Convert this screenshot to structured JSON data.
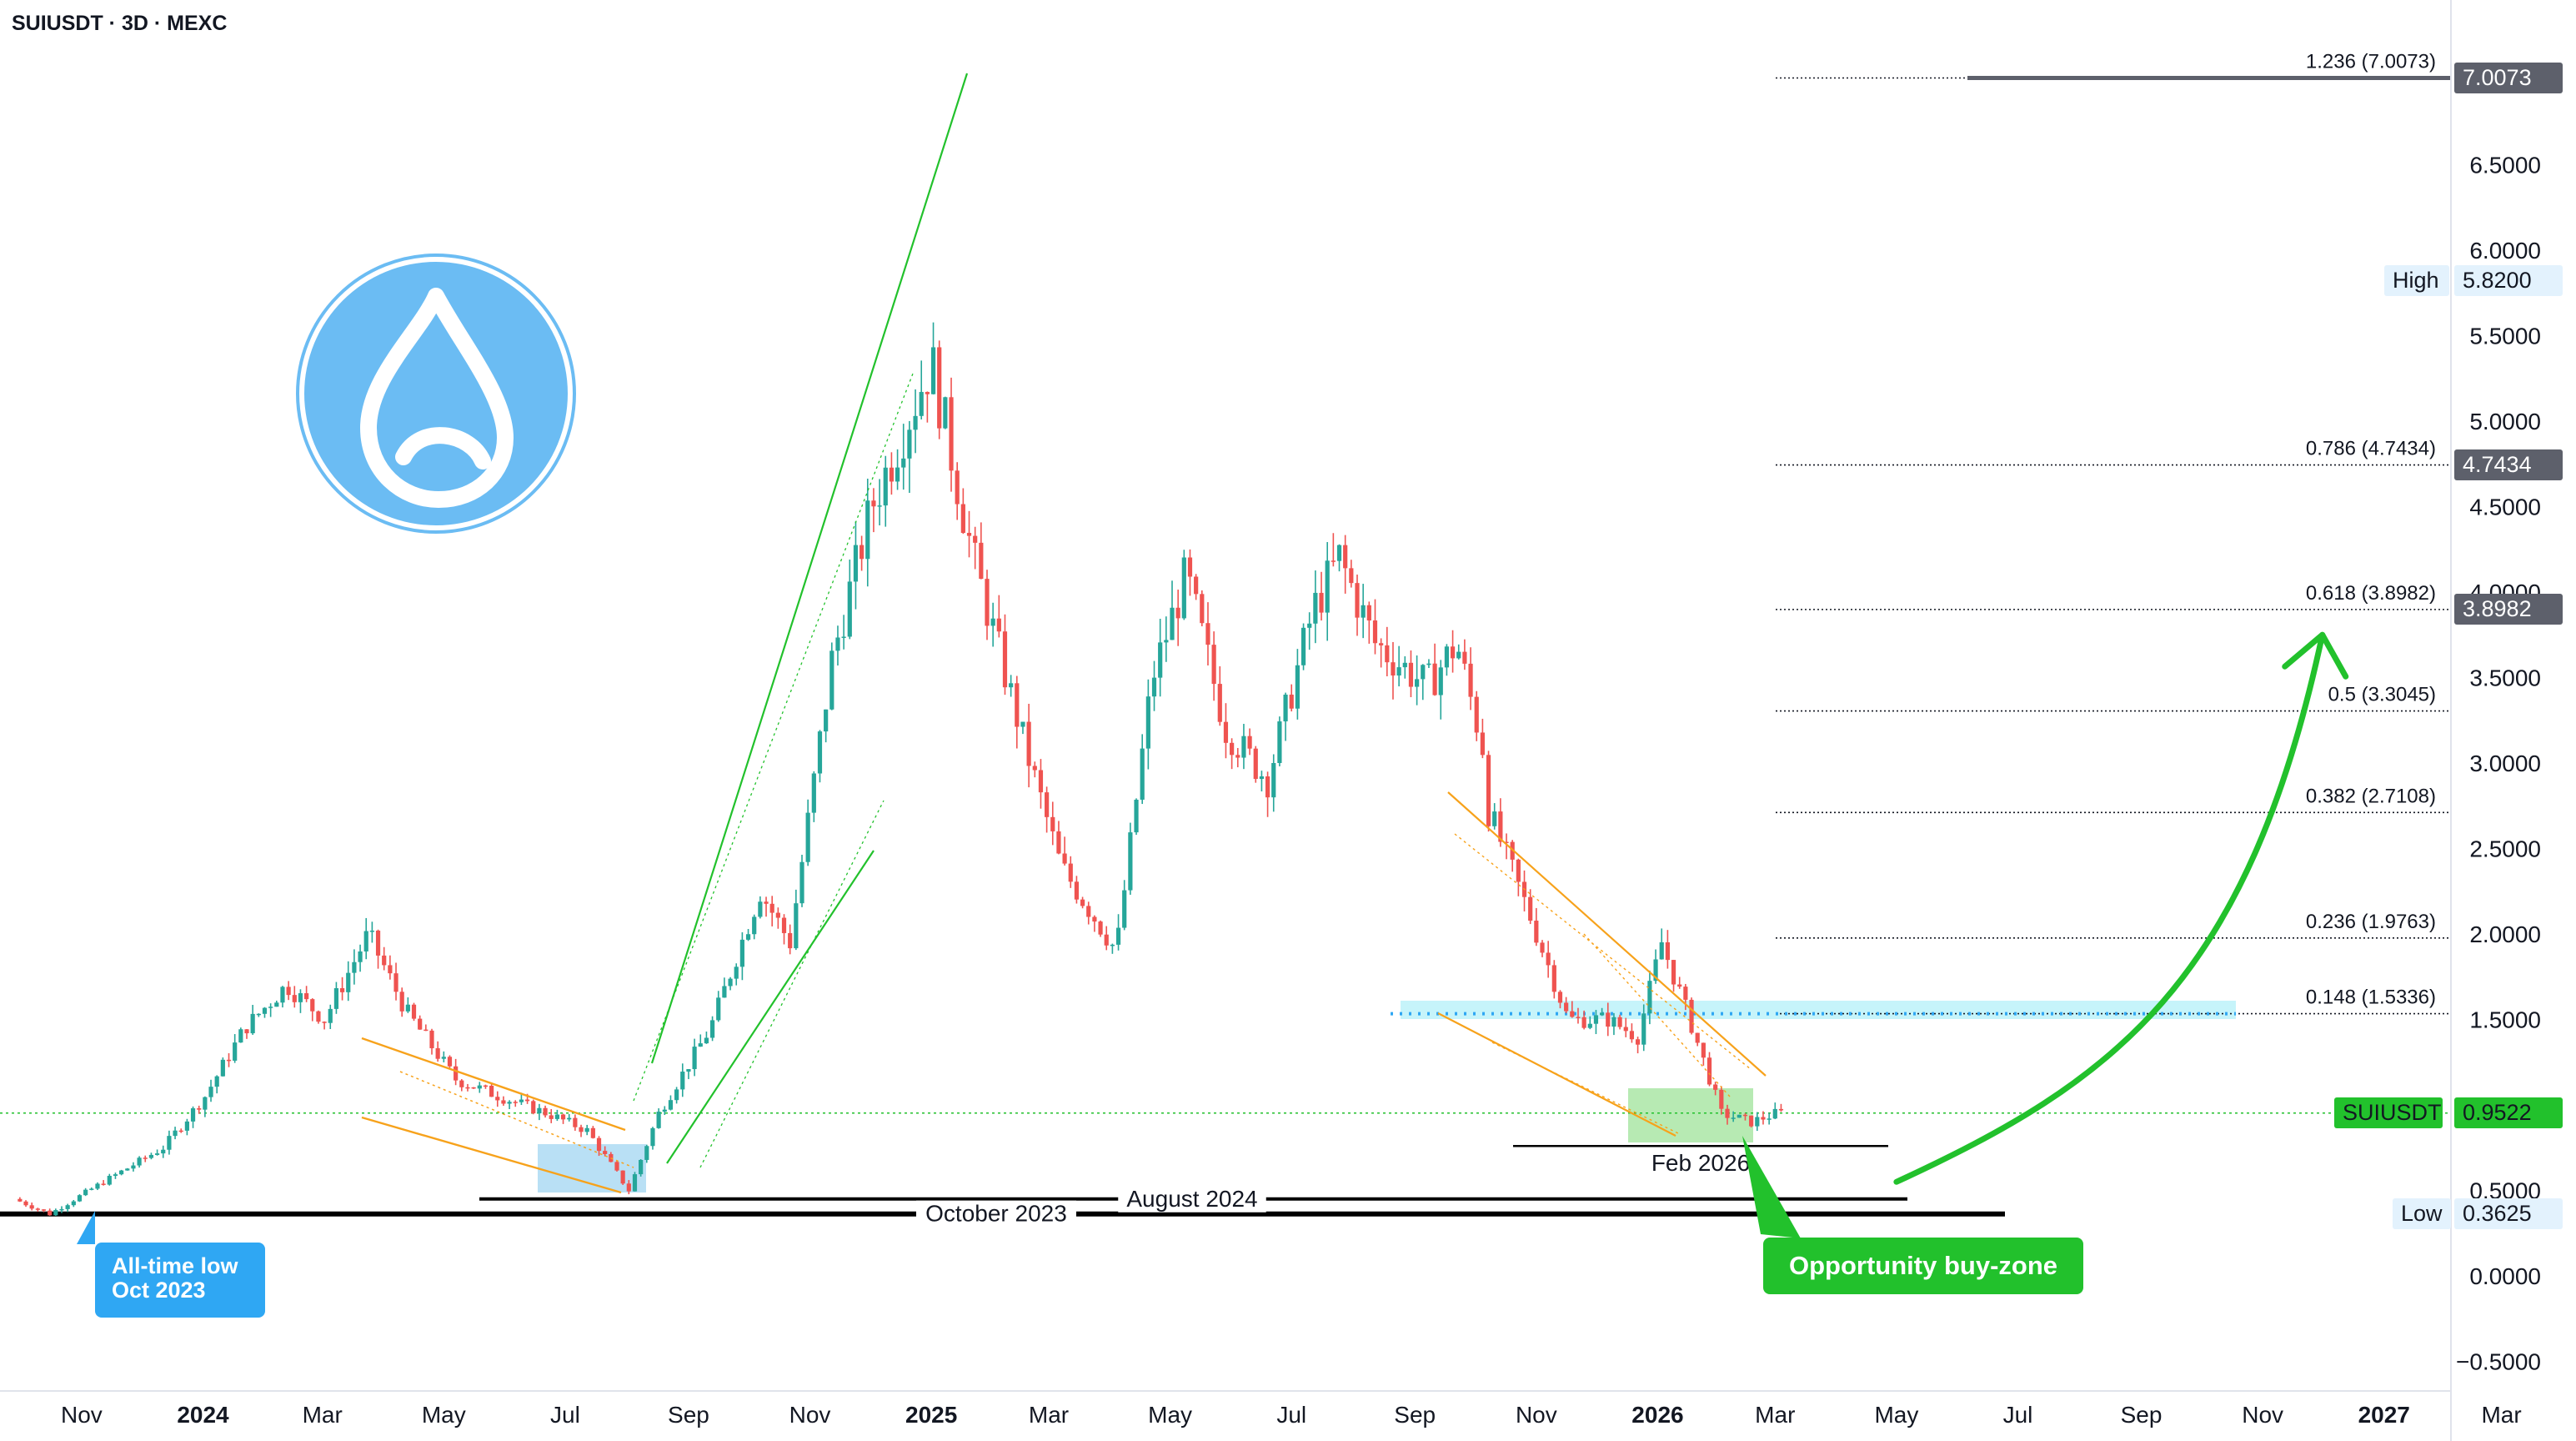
{
  "header": {
    "symbol": "SUIUSDT",
    "interval": "3D",
    "exchange": "MEXC",
    "sep": " · "
  },
  "colors": {
    "up": "#26a69a",
    "down": "#ef5350",
    "green": "#22c12c",
    "orange": "#f7a21b",
    "blue": "#2fa7f3",
    "cyan": "#8ee9f6",
    "gray_tag": "#5d606b",
    "logo": "#6bbcf3"
  },
  "icons": {
    "logo": "sui-drop-logo"
  },
  "price_axis": {
    "ticks": [
      "6.5000",
      "6.0000",
      "5.5000",
      "5.0000",
      "4.5000",
      "4.0000",
      "3.5000",
      "3.0000",
      "2.5000",
      "2.0000",
      "1.5000",
      "0.5000",
      "0.0000",
      "−0.5000"
    ],
    "high": {
      "label": "High",
      "value": "5.8200"
    },
    "low": {
      "label": "Low",
      "value": "0.3625"
    },
    "last": {
      "label": "SUIUSDT",
      "value": "0.9522"
    },
    "tags": [
      "7.0073",
      "4.7434",
      "3.8982"
    ]
  },
  "fib_levels": [
    {
      "label": "1.236 (7.0073)",
      "value": 7.0073
    },
    {
      "label": "0.786 (4.7434)",
      "value": 4.7434
    },
    {
      "label": "0.618 (3.8982)",
      "value": 3.8982
    },
    {
      "label": "0.5 (3.3045)",
      "value": 3.3045
    },
    {
      "label": "0.382 (2.7108)",
      "value": 2.7108
    },
    {
      "label": "0.236 (1.9763)",
      "value": 1.9763
    },
    {
      "label": "0.148 (1.5336)",
      "value": 1.5336
    }
  ],
  "time_axis": [
    "Nov",
    "2024",
    "Mar",
    "May",
    "Jul",
    "Sep",
    "Nov",
    "2025",
    "Mar",
    "May",
    "Jul",
    "Sep",
    "Nov",
    "2026",
    "Mar",
    "May",
    "Jul",
    "Sep",
    "Nov",
    "2027",
    "Mar"
  ],
  "annotations": {
    "aug_2024": "August 2024",
    "oct_2023": "October 2023",
    "feb_2026": "Feb 2026",
    "atl_line1": "All-time low",
    "atl_line2": "Oct 2023",
    "buy_zone": "Opportunity buy-zone"
  },
  "chart_data": {
    "type": "candlestick",
    "title": "SUIUSDT · 3D · MEXC",
    "ylim": [
      -0.5,
      7.3
    ],
    "x_start": "2023-10",
    "x_end": "2027-03",
    "price_path": [
      [
        "2023-10-01",
        0.45
      ],
      [
        "2023-10-19",
        0.3625
      ],
      [
        "2023-11-15",
        0.55
      ],
      [
        "2023-12-15",
        0.75
      ],
      [
        "2024-01-05",
        1.05
      ],
      [
        "2024-01-25",
        1.45
      ],
      [
        "2024-02-15",
        1.7
      ],
      [
        "2024-03-05",
        1.5
      ],
      [
        "2024-03-27",
        2.0
      ],
      [
        "2024-04-15",
        1.55
      ],
      [
        "2024-05-10",
        1.15
      ],
      [
        "2024-06-01",
        1.05
      ],
      [
        "2024-06-25",
        0.95
      ],
      [
        "2024-07-15",
        0.85
      ],
      [
        "2024-08-05",
        0.5
      ],
      [
        "2024-08-20",
        0.95
      ],
      [
        "2024-09-15",
        1.45
      ],
      [
        "2024-10-10",
        2.25
      ],
      [
        "2024-10-25",
        1.95
      ],
      [
        "2024-11-15",
        3.6
      ],
      [
        "2024-12-05",
        4.5
      ],
      [
        "2025-01-04",
        5.35
      ],
      [
        "2025-01-25",
        4.2
      ],
      [
        "2025-02-20",
        3.1
      ],
      [
        "2025-03-10",
        2.4
      ],
      [
        "2025-04-07",
        1.9
      ],
      [
        "2025-04-25",
        3.5
      ],
      [
        "2025-05-12",
        4.1
      ],
      [
        "2025-06-01",
        3.2
      ],
      [
        "2025-06-22",
        2.9
      ],
      [
        "2025-07-15",
        3.9
      ],
      [
        "2025-07-28",
        4.2
      ],
      [
        "2025-08-15",
        3.7
      ],
      [
        "2025-09-10",
        3.45
      ],
      [
        "2025-09-25",
        3.7
      ],
      [
        "2025-10-08",
        3.1
      ],
      [
        "2025-10-10",
        2.75
      ],
      [
        "2025-11-01",
        2.1
      ],
      [
        "2025-11-20",
        1.5
      ],
      [
        "2025-12-10",
        1.5
      ],
      [
        "2025-12-25",
        1.4
      ],
      [
        "2026-01-06",
        1.95
      ],
      [
        "2026-01-20",
        1.5
      ],
      [
        "2026-02-05",
        0.95
      ],
      [
        "2026-02-20",
        0.9
      ],
      [
        "2026-03-05",
        0.9522
      ]
    ],
    "high": 5.82,
    "low": 0.3625,
    "last": 0.9522,
    "fib_levels": [
      {
        "ratio": 1.236,
        "value": 7.0073
      },
      {
        "ratio": 0.786,
        "value": 4.7434
      },
      {
        "ratio": 0.618,
        "value": 3.8982
      },
      {
        "ratio": 0.5,
        "value": 3.3045
      },
      {
        "ratio": 0.382,
        "value": 2.7108
      },
      {
        "ratio": 0.236,
        "value": 1.9763
      },
      {
        "ratio": 0.148,
        "value": 1.5336
      }
    ],
    "horizontal_levels": [
      {
        "label": "October 2023",
        "value": 0.3625
      },
      {
        "label": "August 2024",
        "value": 0.45
      },
      {
        "label": "Feb 2026",
        "value": 0.76
      }
    ],
    "target_arrow": {
      "from": [
        "2026-05-01",
        0.55
      ],
      "to": [
        "2026-12-01",
        3.75
      ]
    },
    "grid": false
  }
}
